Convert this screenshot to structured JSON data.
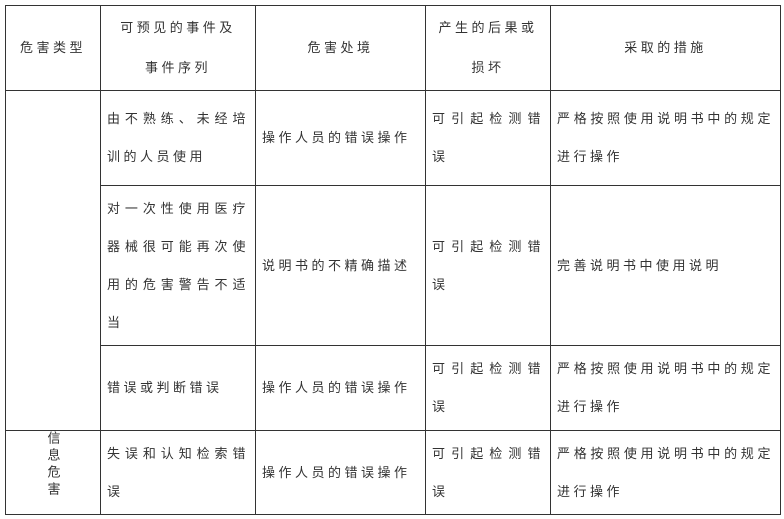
{
  "page": {
    "background": "#ffffff",
    "text_color": "#333333",
    "border_color": "#333333"
  },
  "table": {
    "columns": [
      {
        "key": "hazard_type",
        "label": "危害类型"
      },
      {
        "key": "foreseeable_events",
        "label": "可预见的事件及\n事件序列"
      },
      {
        "key": "hazardous_situation",
        "label": "危害处境"
      },
      {
        "key": "consequence",
        "label": "产生的后果或\n损坏"
      },
      {
        "key": "measures",
        "label": "采取的措施"
      }
    ],
    "rows": [
      {
        "hazard_type": "",
        "event": "由不熟练、未经培训的人员使用",
        "situation": "操作人员的错误操作",
        "consequence": "可引起检测错误",
        "measure": "严格按照使用说明书中的规定进行操作"
      },
      {
        "hazard_type": "",
        "event": "对一次性使用医疗器械很可能再次使用的危害警告不适当",
        "situation": "说明书的不精确描述",
        "consequence": "可引起检测错误",
        "measure": "完善说明书中使用说明"
      },
      {
        "hazard_type": "",
        "event": "错误或判断错误",
        "situation": "操作人员的错误操作",
        "consequence": "可引起检测错误",
        "measure": "严格按照使用说明书中的规定进行操作"
      },
      {
        "hazard_type": "信息危害",
        "event": "失误和认知检索错误",
        "situation": "操作人员的错误操作",
        "consequence": "可引起检测错误",
        "measure": "严格按照使用说明书中的规定进行操作"
      }
    ]
  }
}
